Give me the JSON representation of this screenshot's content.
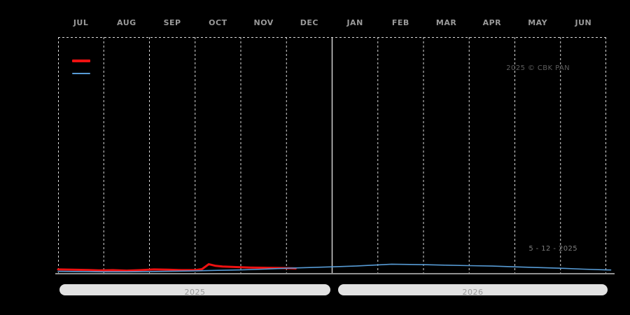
{
  "watermark": "2025 © CBK PAN",
  "date_label": "5 - 12 - 2025",
  "year_bars": [
    {
      "label": "2025"
    },
    {
      "label": "2026"
    }
  ],
  "legend": {
    "position": "top-left",
    "visible_text": false,
    "items": [
      {
        "swatch": "red-thick-line",
        "color": "#ee1111",
        "thickness": 4
      },
      {
        "swatch": "blue-thin-line",
        "color": "#579bd5",
        "thickness": 2
      }
    ]
  },
  "colors": {
    "background": "#000000",
    "frame_dashed": "#d8d8d8",
    "month_gridline": "#d8d8d8",
    "year_divider": "#cfcfcf",
    "baseline_axis": "#909090",
    "month_label": "#9a9a9a",
    "watermark_text": "#5e5e5e",
    "date_text": "#7d7d7d",
    "year_bar_bg": "#e2e2e2",
    "year_bar_text": "#9b9b9b",
    "red_line": "#ee1111",
    "blue_line": "#579bd5"
  },
  "chart_data": {
    "type": "line",
    "title": "",
    "x_axis": {
      "tick_labels": [
        "JUL",
        "AUG",
        "SEP",
        "OCT",
        "NOV",
        "DEC",
        "JAN",
        "FEB",
        "MAR",
        "APR",
        "MAY",
        "JUN"
      ],
      "unit": "months, Jul 2025 through Jun 2026",
      "range_months": [
        0,
        12
      ],
      "year_segments": [
        "2025",
        "2026"
      ],
      "year_boundary_month_index": 6
    },
    "y_axis": {
      "visible_labels": false,
      "unit": "relative height, % of plot area above baseline (no numeric labels shown in image)"
    },
    "grid": "vertical dashed lines at each month boundary; solid gray divider between DEC and JAN; dashed frame on top/left/right; solid gray baseline at bottom",
    "legend_position": "top-left, swatches only (no visible label text)",
    "series": [
      {
        "name": "red-thick-line",
        "color": "#ee1111",
        "stroke_width": 3,
        "extent": "Jul 2025 to ~Dec 5 2025, with spike in early October",
        "x_months": [
          0,
          0.3,
          0.6,
          0.9,
          1.2,
          1.5,
          1.8,
          2.1,
          2.4,
          2.7,
          3.0,
          3.15,
          3.3,
          3.45,
          3.6,
          3.9,
          4.2,
          4.5,
          4.8,
          5.1,
          5.2
        ],
        "y_pct": [
          2.1,
          2.0,
          1.9,
          1.7,
          1.8,
          1.6,
          1.8,
          2.1,
          2.0,
          1.8,
          1.8,
          2.2,
          4.3,
          3.6,
          3.3,
          3.1,
          2.9,
          2.8,
          2.7,
          2.6,
          2.5
        ]
      },
      {
        "name": "blue-thin-line",
        "color": "#579bd5",
        "stroke_width": 1.6,
        "extent": "Jul 2025 to end of Jun 2026, smooth curve peaking mid-February",
        "x_months": [
          0,
          0.5,
          1,
          1.5,
          2,
          2.5,
          3,
          3.5,
          4,
          4.5,
          5,
          5.5,
          6,
          6.5,
          7,
          7.3,
          7.7,
          8,
          8.5,
          9,
          9.5,
          10,
          10.5,
          11,
          11.5,
          12,
          12.1
        ],
        "y_pct": [
          1.3,
          1.2,
          1.1,
          1.1,
          1.2,
          1.35,
          1.5,
          1.7,
          1.9,
          2.2,
          2.6,
          2.9,
          3.2,
          3.5,
          4.0,
          4.3,
          4.2,
          4.1,
          3.9,
          3.7,
          3.5,
          3.2,
          2.9,
          2.6,
          2.2,
          1.9,
          1.85
        ]
      }
    ]
  }
}
